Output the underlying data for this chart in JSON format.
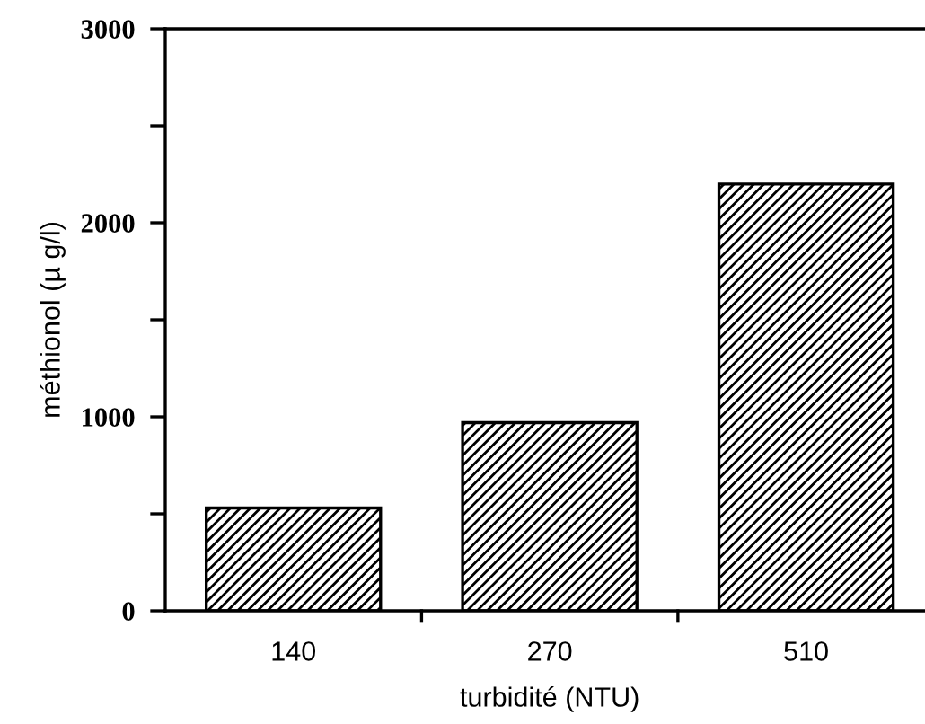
{
  "chart_data": {
    "type": "bar",
    "xlabel": "turbidité (NTU)",
    "ylabel": "méthionol (µ g/l)",
    "categories": [
      "140",
      "270",
      "510"
    ],
    "values": [
      530,
      970,
      2200
    ],
    "color": "#000000",
    "ylim": [
      0,
      3000
    ],
    "yticks": [
      0,
      {
        "value": 500,
        "label": null
      },
      1000,
      {
        "value": 1500,
        "label": null
      },
      2000,
      {
        "value": 2500,
        "label": null
      },
      3000
    ],
    "grid": false,
    "legend": false
  }
}
